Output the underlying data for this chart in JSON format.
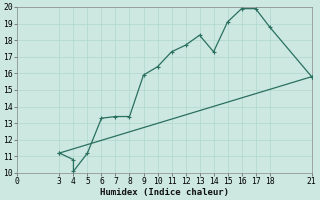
{
  "title": "",
  "xlabel": "Humidex (Indice chaleur)",
  "ylabel": "",
  "bg_color": "#cce8e0",
  "line_color": "#2a7060",
  "grid_color": "#b0d8cc",
  "spine_color": "#888888",
  "xlim": [
    0,
    21
  ],
  "ylim": [
    10,
    20
  ],
  "xticks": [
    0,
    3,
    4,
    5,
    6,
    7,
    8,
    9,
    10,
    11,
    12,
    13,
    14,
    15,
    16,
    17,
    18,
    21
  ],
  "yticks": [
    10,
    11,
    12,
    13,
    14,
    15,
    16,
    17,
    18,
    19,
    20
  ],
  "line1_x": [
    3,
    4,
    4,
    5,
    6,
    7,
    8,
    9,
    10,
    11,
    12,
    13,
    14,
    15,
    16,
    17,
    18,
    21
  ],
  "line1_y": [
    11.2,
    10.8,
    10.1,
    11.2,
    13.3,
    13.4,
    13.4,
    15.9,
    16.4,
    17.3,
    17.7,
    18.3,
    17.3,
    19.1,
    19.9,
    19.9,
    18.8,
    15.8
  ],
  "line2_x": [
    3,
    21
  ],
  "line2_y": [
    11.2,
    15.8
  ],
  "markersize": 3.5,
  "linewidth": 0.9,
  "font_size": 6.5,
  "tick_font_size": 5.8
}
